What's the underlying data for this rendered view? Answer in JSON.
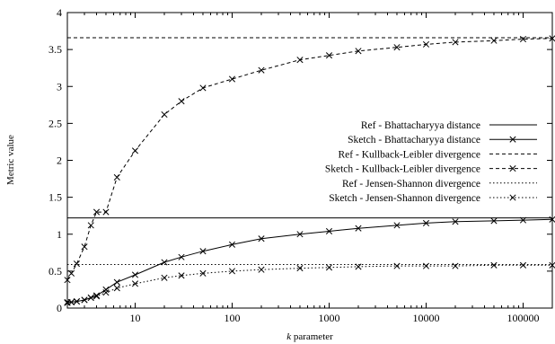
{
  "chart_data": {
    "type": "line",
    "xlabel_italic": "k",
    "xlabel_rest": " parameter",
    "ylabel": "Metric value",
    "x_scale": "log",
    "xlim": [
      2,
      200000
    ],
    "ylim": [
      0,
      4
    ],
    "grid": false,
    "legend_position": "center-right",
    "x_ticks": [
      10,
      100,
      1000,
      10000,
      100000
    ],
    "x_tick_labels": [
      "10",
      "100",
      "1000",
      "10000",
      "100000"
    ],
    "y_ticks": [
      0,
      0.5,
      1,
      1.5,
      2,
      2.5,
      3,
      3.5,
      4
    ],
    "y_tick_labels": [
      "0",
      "0.5",
      "1",
      "1.5",
      "2",
      "2.5",
      "3",
      "3.5",
      "4"
    ],
    "series": [
      {
        "name": "Ref - Bhattacharyya distance",
        "style": "solid",
        "marker": false,
        "constant": 1.22
      },
      {
        "name": "Sketch - Bhattacharyya distance",
        "style": "solid",
        "marker": true,
        "x": [
          2,
          2.2,
          2.5,
          3,
          3.5,
          4,
          5,
          6.5,
          10,
          20,
          30,
          50,
          100,
          200,
          500,
          1000,
          2000,
          5000,
          10000,
          20000,
          50000,
          100000,
          200000
        ],
        "y": [
          0.08,
          0.08,
          0.09,
          0.11,
          0.14,
          0.17,
          0.25,
          0.35,
          0.45,
          0.62,
          0.69,
          0.77,
          0.86,
          0.94,
          1.0,
          1.04,
          1.08,
          1.12,
          1.15,
          1.17,
          1.18,
          1.19,
          1.2
        ]
      },
      {
        "name": "Ref - Kullback-Leibler divergence",
        "style": "dashed",
        "marker": false,
        "constant": 3.66
      },
      {
        "name": "Sketch - Kullback-Leibler divergence",
        "style": "dashed",
        "marker": true,
        "x": [
          2,
          2.2,
          2.5,
          3,
          3.5,
          4,
          5,
          6.5,
          10,
          20,
          30,
          50,
          100,
          200,
          500,
          1000,
          2000,
          5000,
          10000,
          20000,
          50000,
          100000,
          200000
        ],
        "y": [
          0.38,
          0.47,
          0.6,
          0.83,
          1.12,
          1.3,
          1.3,
          1.77,
          2.13,
          2.62,
          2.8,
          2.98,
          3.1,
          3.22,
          3.36,
          3.42,
          3.48,
          3.53,
          3.57,
          3.6,
          3.62,
          3.64,
          3.65
        ]
      },
      {
        "name": "Ref - Jensen-Shannon divergence",
        "style": "dotted",
        "marker": false,
        "constant": 0.59
      },
      {
        "name": "Sketch - Jensen-Shannon divergence",
        "style": "dotted",
        "marker": true,
        "x": [
          2,
          2.2,
          2.5,
          3,
          3.5,
          4,
          5,
          6.5,
          10,
          20,
          30,
          50,
          100,
          200,
          500,
          1000,
          2000,
          5000,
          10000,
          20000,
          50000,
          100000,
          200000
        ],
        "y": [
          0.07,
          0.08,
          0.09,
          0.11,
          0.14,
          0.16,
          0.21,
          0.27,
          0.33,
          0.41,
          0.44,
          0.47,
          0.5,
          0.52,
          0.54,
          0.55,
          0.56,
          0.57,
          0.57,
          0.57,
          0.58,
          0.58,
          0.58
        ]
      }
    ]
  }
}
